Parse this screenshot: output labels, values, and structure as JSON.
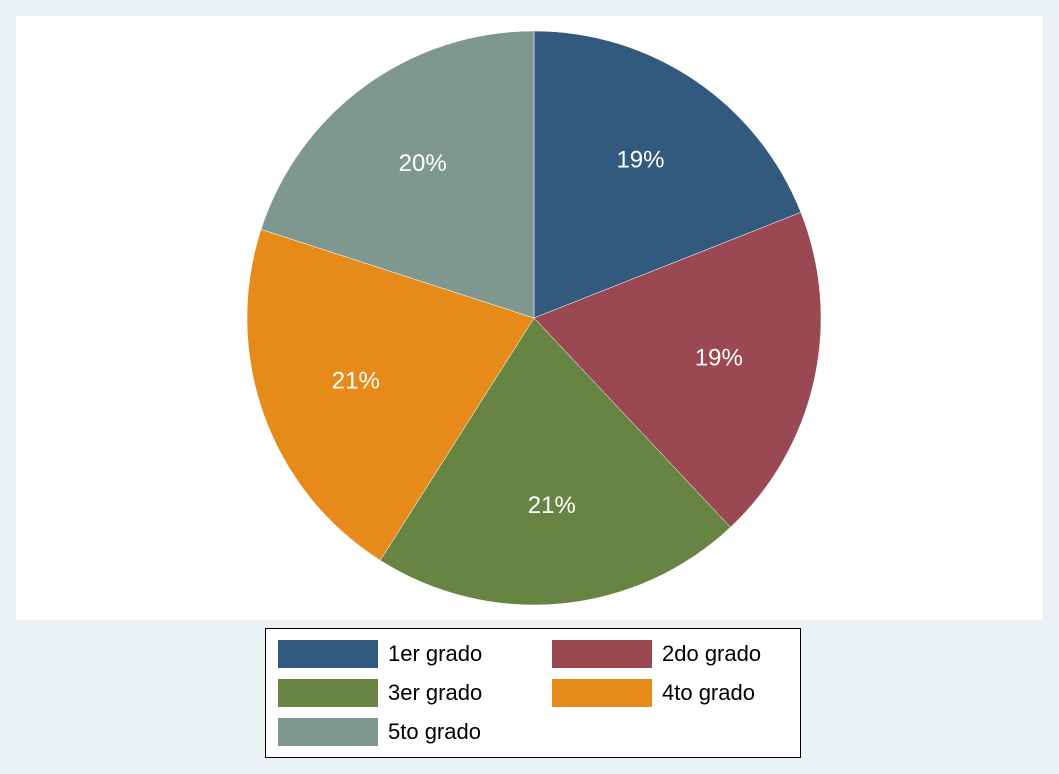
{
  "chart_data": {
    "type": "pie",
    "categories": [
      "1er grado",
      "2do grado",
      "3er grado",
      "4to grado",
      "5to grado"
    ],
    "values": [
      19,
      19,
      21,
      21,
      20
    ],
    "value_labels": [
      "19%",
      "19%",
      "21%",
      "21%",
      "20%"
    ],
    "colors": [
      "#325a7f",
      "#9a4851",
      "#678443",
      "#e68a1a",
      "#7e988f"
    ],
    "legend": "bottom"
  }
}
